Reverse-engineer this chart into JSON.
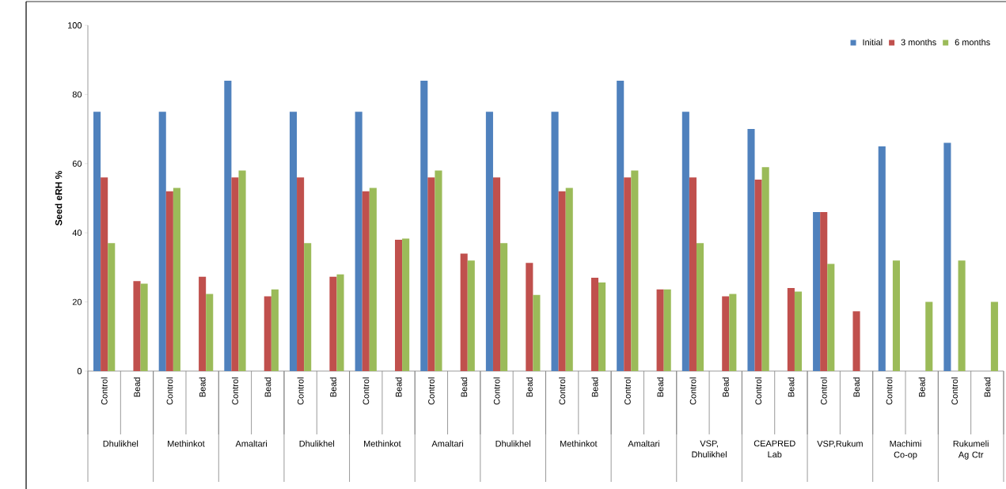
{
  "chart_data": {
    "type": "bar",
    "ylabel": "Seed eRH %",
    "categories": [
      "Control",
      "Bead",
      "Control",
      "Bead",
      "Control",
      "Bead",
      "Control",
      "Bead",
      "Control",
      "Bead",
      "Control",
      "Bead",
      "Control",
      "Bead",
      "Control",
      "Bead",
      "Control",
      "Bead",
      "Control",
      "Bead",
      "Control",
      "Bead",
      "Control",
      "Bead",
      "Control",
      "Bead",
      "Control",
      "Bead"
    ],
    "series": [
      {
        "name": "Initial",
        "color": "#4f81bd",
        "values": [
          75,
          null,
          75,
          null,
          84,
          null,
          75,
          null,
          75,
          null,
          84,
          null,
          75,
          null,
          75,
          null,
          84,
          null,
          75,
          null,
          70,
          null,
          46,
          null,
          65,
          null,
          66,
          null
        ]
      },
      {
        "name": "3 months",
        "color": "#c0504d",
        "values": [
          56,
          26,
          52,
          27.3,
          56,
          21.6,
          56,
          27.3,
          52,
          38,
          56,
          34,
          56,
          31.3,
          52,
          27,
          56,
          23.6,
          56,
          21.6,
          55.4,
          24,
          46,
          17.3,
          null,
          null,
          null,
          null
        ]
      },
      {
        "name": "6 months",
        "color": "#9bbb59",
        "values": [
          37,
          25.3,
          53,
          22.3,
          58,
          23.6,
          37,
          28,
          53,
          38.3,
          58,
          32,
          37,
          22,
          53,
          25.6,
          58,
          23.6,
          37,
          22.3,
          59,
          23,
          31,
          null,
          32,
          20,
          32,
          20
        ]
      }
    ],
    "annotations": [
      "Dhulikhel",
      "Methinkot",
      "Amaltari",
      "Dhulikhel",
      "Methinkot",
      "Amaltari",
      "Dhulikhel",
      "Methinkot",
      "Amaltari",
      "VSP, Dhulikhel",
      "CEAPRED Lab",
      "VSP,Rukum",
      "Machimi Co-op",
      "Rukumeli Ag Ctr"
    ],
    "ylim": [
      0,
      100
    ],
    "yticks": [
      0,
      20,
      40,
      60,
      80,
      100
    ],
    "grid": false,
    "legend": "top right"
  }
}
